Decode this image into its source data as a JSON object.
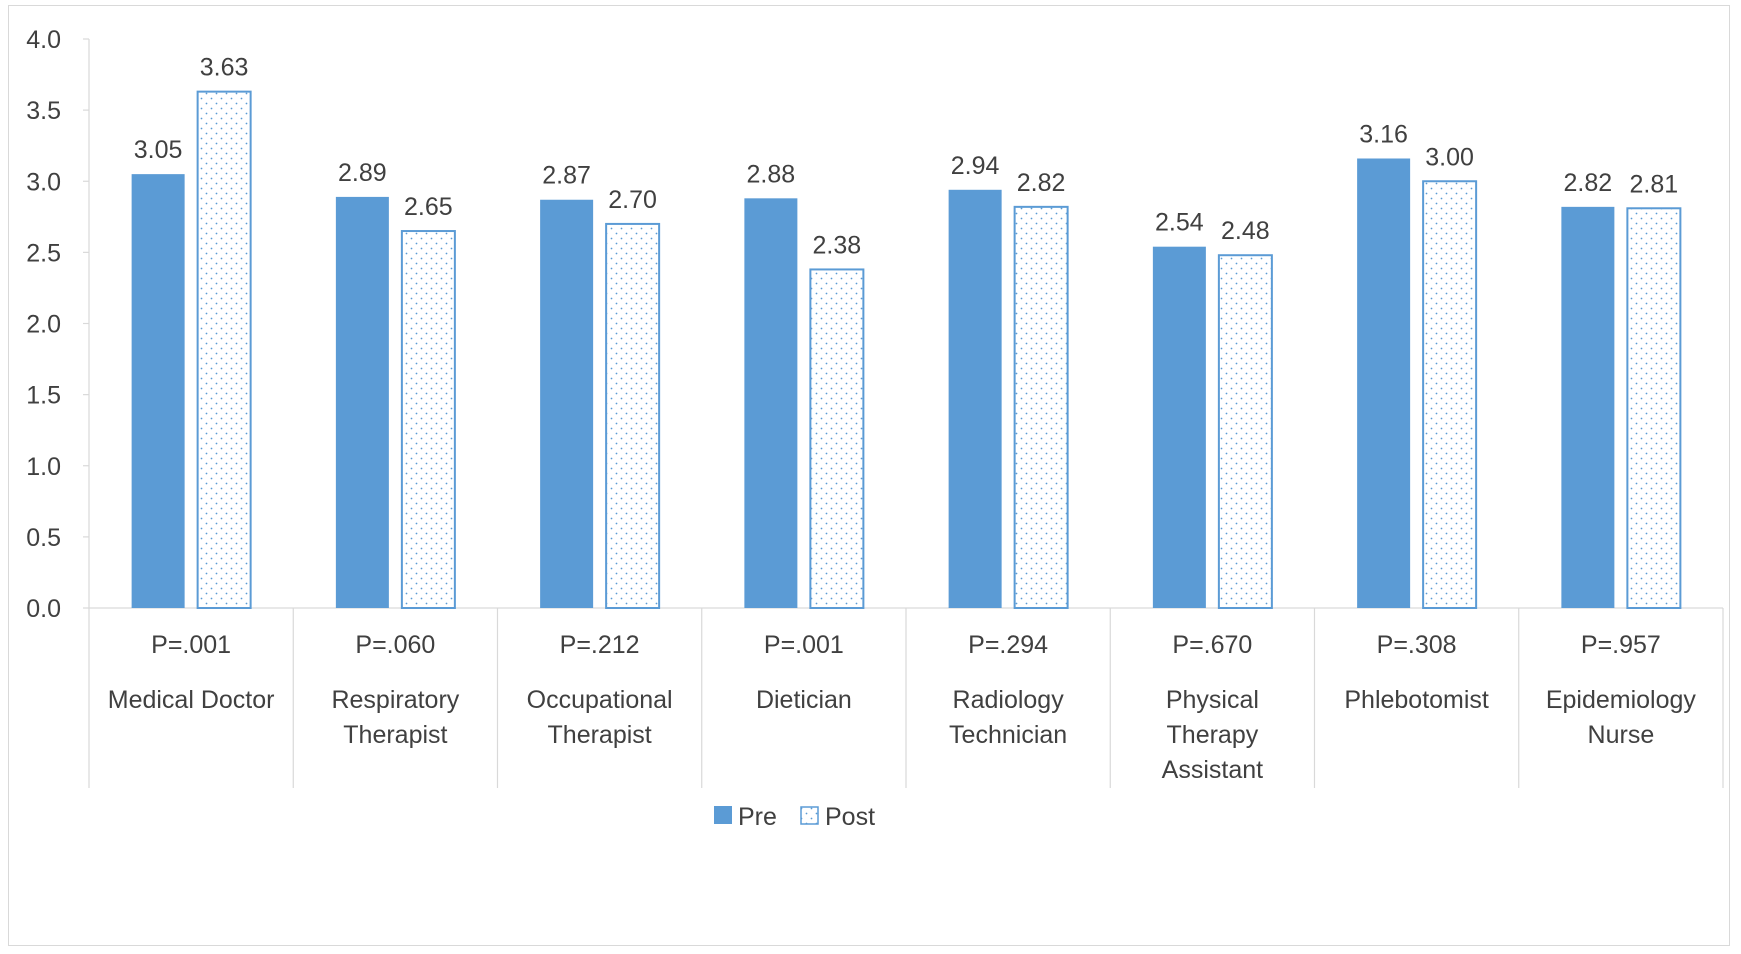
{
  "chart_data": {
    "type": "bar",
    "title": "",
    "xlabel": "",
    "ylabel": "",
    "ylim": [
      0,
      4
    ],
    "yticks": [
      "0.0",
      "0.5",
      "1.0",
      "1.5",
      "2.0",
      "2.5",
      "3.0",
      "3.5",
      "4.0"
    ],
    "grid": false,
    "legend_position": "bottom",
    "categories": [
      {
        "p_value": "P=.001",
        "name_lines": [
          "Medical Doctor"
        ]
      },
      {
        "p_value": "P=.060",
        "name_lines": [
          "Respiratory",
          "Therapist"
        ]
      },
      {
        "p_value": "P=.212",
        "name_lines": [
          "Occupational",
          "Therapist"
        ]
      },
      {
        "p_value": "P=.001",
        "name_lines": [
          "Dietician"
        ]
      },
      {
        "p_value": "P=.294",
        "name_lines": [
          "Radiology",
          "Technician"
        ]
      },
      {
        "p_value": "P=.670",
        "name_lines": [
          "Physical",
          "Therapy",
          "Assistant"
        ]
      },
      {
        "p_value": "P=.308",
        "name_lines": [
          "Phlebotomist"
        ]
      },
      {
        "p_value": "P=.957",
        "name_lines": [
          "Epidemiology",
          "Nurse"
        ]
      }
    ],
    "series": [
      {
        "name": "Pre",
        "style": "solid",
        "color": "#5b9bd5",
        "values": [
          3.05,
          2.89,
          2.87,
          2.88,
          2.94,
          2.54,
          3.16,
          2.82
        ],
        "labels": [
          "3.05",
          "2.89",
          "2.87",
          "2.88",
          "2.94",
          "2.54",
          "3.16",
          "2.82"
        ]
      },
      {
        "name": "Post",
        "style": "dotted-outline",
        "color": "#5b9bd5",
        "values": [
          3.63,
          2.65,
          2.7,
          2.38,
          2.82,
          2.48,
          3.0,
          2.81
        ],
        "labels": [
          "3.63",
          "2.65",
          "2.70",
          "2.38",
          "2.82",
          "2.48",
          "3.00",
          "2.81"
        ]
      }
    ]
  }
}
